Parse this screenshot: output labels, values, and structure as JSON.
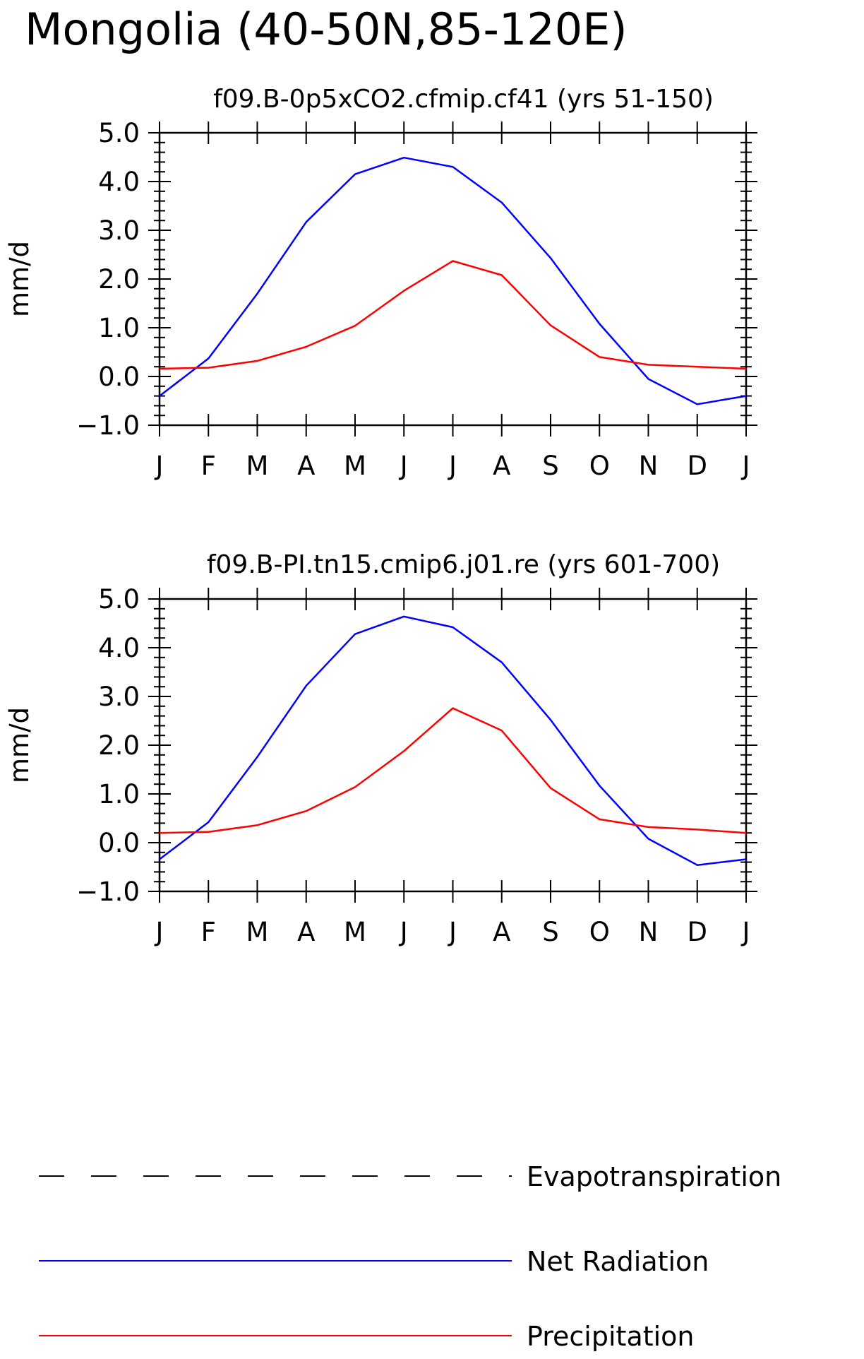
{
  "main_title": "Mongolia (40-50N,85-120E)",
  "chart_data": [
    {
      "type": "line",
      "title": "f09.B-0p5xCO2.cfmip.cf41 (yrs 51-150)",
      "xlabel": "",
      "ylabel": "mm/d",
      "ylim": [
        -1.0,
        5.0
      ],
      "yticks": [
        "5.0",
        "4.0",
        "3.0",
        "2.0",
        "1.0",
        "0.0",
        "-1.0"
      ],
      "categories": [
        "J",
        "F",
        "M",
        "A",
        "M",
        "J",
        "J",
        "A",
        "S",
        "O",
        "N",
        "D",
        "J"
      ],
      "series": [
        {
          "name": "Net Radiation",
          "color": "#0000ff",
          "values": [
            -0.4,
            0.37,
            1.7,
            3.17,
            4.15,
            4.49,
            4.3,
            3.57,
            2.43,
            1.08,
            -0.05,
            -0.57,
            -0.4
          ]
        },
        {
          "name": "Precipitation",
          "color": "#ff0000",
          "values": [
            0.16,
            0.18,
            0.32,
            0.61,
            1.04,
            1.76,
            2.37,
            2.08,
            1.05,
            0.4,
            0.24,
            0.2,
            0.16
          ]
        }
      ]
    },
    {
      "type": "line",
      "title": "f09.B-PI.tn15.cmip6.j01.re (yrs 601-700)",
      "xlabel": "",
      "ylabel": "mm/d",
      "ylim": [
        -1.0,
        5.0
      ],
      "yticks": [
        "5.0",
        "4.0",
        "3.0",
        "2.0",
        "1.0",
        "0.0",
        "-1.0"
      ],
      "categories": [
        "J",
        "F",
        "M",
        "A",
        "M",
        "J",
        "J",
        "A",
        "S",
        "O",
        "N",
        "D",
        "J"
      ],
      "series": [
        {
          "name": "Net Radiation",
          "color": "#0000ff",
          "values": [
            -0.34,
            0.42,
            1.76,
            3.22,
            4.28,
            4.64,
            4.42,
            3.7,
            2.52,
            1.17,
            0.08,
            -0.46,
            -0.34
          ]
        },
        {
          "name": "Precipitation",
          "color": "#ff0000",
          "values": [
            0.2,
            0.22,
            0.36,
            0.65,
            1.14,
            1.88,
            2.76,
            2.3,
            1.12,
            0.48,
            0.32,
            0.27,
            0.2
          ]
        }
      ]
    }
  ],
  "legend": {
    "items": [
      {
        "label": "Evapotranspiration",
        "color": "#000000",
        "style": "dashed"
      },
      {
        "label": "Net Radiation",
        "color": "#0000ff",
        "style": "solid"
      },
      {
        "label": "Precipitation",
        "color": "#ff0000",
        "style": "solid"
      }
    ]
  }
}
